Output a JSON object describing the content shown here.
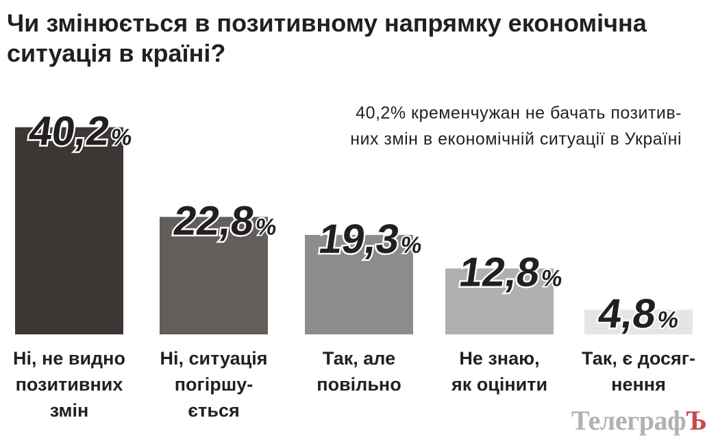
{
  "chart_data": {
    "type": "bar",
    "title": "Чи змінюється в позитивному напрямку економічна ситуація в країні?",
    "subtitle_lines": [
      "40,2% кременчужан не бачать позитив-",
      "них змін в економічній ситуації в Україні"
    ],
    "unit": "%",
    "categories": [
      [
        "Ні, не видно",
        "позитивних",
        "змін"
      ],
      [
        "Ні, ситуація",
        "погіршу-",
        "ється"
      ],
      [
        "Так, але",
        "повільно"
      ],
      [
        "Не знаю,",
        "як оцінити"
      ],
      [
        "Так, є досяг-",
        "нення"
      ]
    ],
    "values": [
      40.2,
      22.8,
      19.3,
      12.8,
      4.8
    ],
    "value_labels": [
      "40,2",
      "22,8",
      "19,3",
      "12,8",
      "4,8"
    ],
    "colors": [
      "#3b3735",
      "#625e5b",
      "#8e8c8a",
      "#b2b0ae",
      "#e6e5e3"
    ],
    "grid": false,
    "legend": "none"
  },
  "logo": {
    "text": "Телеграф",
    "last_letter": "Ъ"
  }
}
